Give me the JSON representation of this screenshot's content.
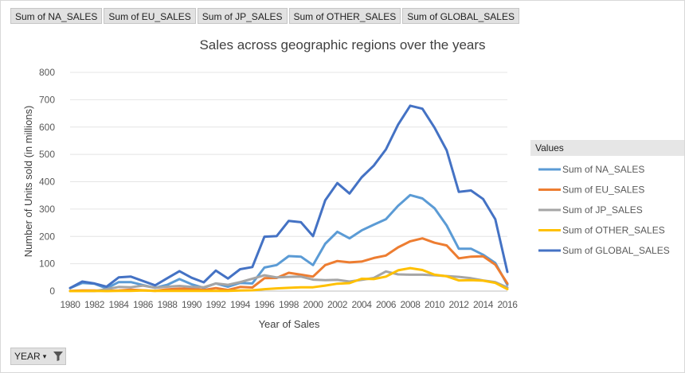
{
  "field_buttons": [
    "Sum of NA_SALES",
    "Sum of EU_SALES",
    "Sum of JP_SALES",
    "Sum of OTHER_SALES",
    "Sum of GLOBAL_SALES"
  ],
  "legend_header": "Values",
  "year_button": {
    "label": "YEAR",
    "dropdown_glyph": "▾",
    "icon": "filter-icon"
  },
  "chart_data": {
    "type": "line",
    "title": "Sales across geographic regions over the years",
    "xlabel": "Year of Sales",
    "ylabel": "Number of Units sold (in millions)",
    "ylim": [
      0,
      800
    ],
    "yticks": [
      0,
      100,
      200,
      300,
      400,
      500,
      600,
      700,
      800
    ],
    "grid": true,
    "legend_position": "right",
    "x": [
      1980,
      1981,
      1982,
      1983,
      1984,
      1985,
      1986,
      1987,
      1988,
      1989,
      1990,
      1991,
      1992,
      1993,
      1994,
      1995,
      1996,
      1997,
      1998,
      1999,
      2000,
      2001,
      2002,
      2003,
      2004,
      2005,
      2006,
      2007,
      2008,
      2009,
      2010,
      2011,
      2012,
      2013,
      2014,
      2015,
      2016
    ],
    "xticks": [
      1980,
      1982,
      1984,
      1986,
      1988,
      1990,
      1992,
      1994,
      1996,
      1998,
      2000,
      2002,
      2004,
      2006,
      2008,
      2010,
      2012,
      2014,
      2016
    ],
    "series": [
      {
        "name": "Sum of NA_SALES",
        "color": "#5B9BD5",
        "values": [
          11,
          30,
          27,
          10,
          33,
          33,
          22,
          12,
          23,
          44,
          25,
          12,
          28,
          16,
          30,
          28,
          86,
          95,
          128,
          126,
          95,
          173,
          217,
          193,
          222,
          243,
          263,
          312,
          351,
          339,
          303,
          240,
          155,
          155,
          133,
          103,
          23
        ]
      },
      {
        "name": "Sum of EU_SALES",
        "color": "#ED7D31",
        "values": [
          1,
          2,
          2,
          1,
          2,
          5,
          3,
          1,
          6,
          9,
          8,
          4,
          11,
          4,
          15,
          13,
          47,
          48,
          67,
          60,
          53,
          95,
          110,
          105,
          108,
          121,
          130,
          160,
          182,
          193,
          177,
          167,
          120,
          126,
          127,
          97,
          28
        ]
      },
      {
        "name": "Sum of JP_SALES",
        "color": "#A5A5A5",
        "values": [
          0,
          0,
          0,
          7,
          15,
          14,
          20,
          12,
          16,
          19,
          15,
          14,
          28,
          23,
          33,
          45,
          58,
          50,
          52,
          53,
          42,
          40,
          41,
          35,
          41,
          48,
          72,
          61,
          60,
          60,
          58,
          55,
          52,
          47,
          39,
          33,
          13
        ]
      },
      {
        "name": "Sum of OTHER_SALES",
        "color": "#FFC000",
        "values": [
          0,
          0,
          1,
          0,
          1,
          1,
          2,
          1,
          1,
          1,
          1,
          1,
          1,
          1,
          2,
          3,
          7,
          10,
          12,
          14,
          14,
          20,
          27,
          29,
          45,
          44,
          53,
          76,
          84,
          77,
          60,
          54,
          39,
          40,
          38,
          30,
          7
        ]
      },
      {
        "name": "Sum of GLOBAL_SALES",
        "color": "#4472C4",
        "values": [
          11,
          35,
          28,
          16,
          50,
          53,
          37,
          21,
          47,
          73,
          49,
          32,
          75,
          46,
          80,
          88,
          199,
          201,
          257,
          252,
          201,
          332,
          395,
          357,
          416,
          459,
          518,
          609,
          678,
          667,
          598,
          515,
          363,
          368,
          337,
          263,
          70
        ]
      }
    ]
  }
}
